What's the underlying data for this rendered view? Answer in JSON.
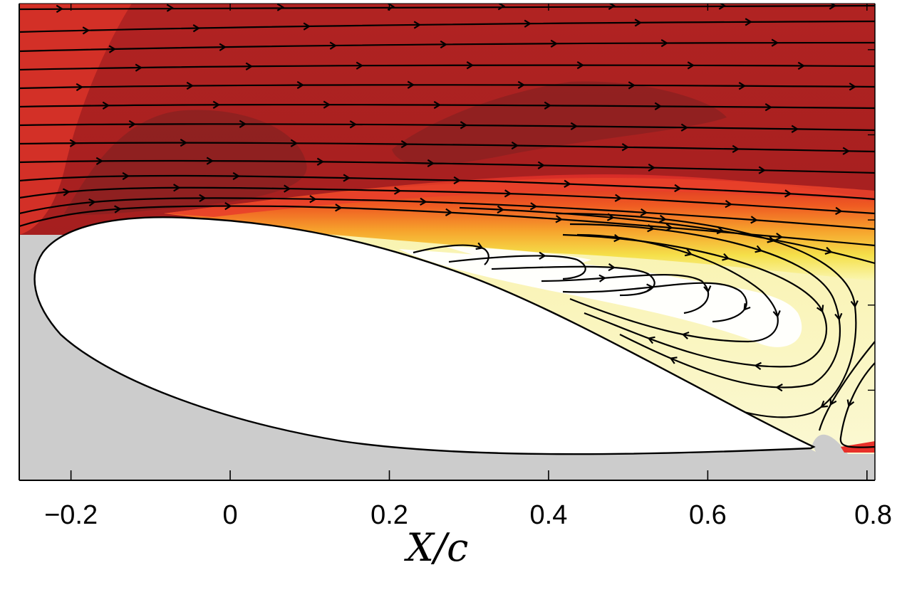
{
  "chart_data": {
    "type": "heatmap",
    "title": "",
    "xlabel": "X/c",
    "ylabel": "",
    "xlim": [
      -0.265,
      0.81
    ],
    "xticks": [
      -0.2,
      0,
      0.2,
      0.4,
      0.6,
      0.8
    ],
    "xtick_labels": [
      "−0.2",
      "0",
      "0.2",
      "0.4",
      "0.6",
      "0.8"
    ],
    "y_ticks_unlabeled": 5,
    "grid": false,
    "legend": "none",
    "colormap": {
      "name": "hot",
      "stops": [
        "#7a1e1e",
        "#a62222",
        "#d62a28",
        "#ef5a22",
        "#f6a22c",
        "#f5e04a",
        "#faf6b0",
        "#fffef0"
      ]
    },
    "masked_region_color": "#cccccc",
    "airfoil": {
      "leading_edge_x": -0.245,
      "trailing_edge_x": 0.73,
      "fill": "#ffffff",
      "outline": "#000000"
    },
    "features": {
      "freestream": "high-speed region above the airfoil shown in dark red",
      "shear_layer": "red to yellow transition from about x = 0.05 downstream",
      "separated_region": "low-speed pale yellow/white recirculation zone over the aft suction side from about x = 0.25 to 0.81",
      "vortex_center_x": 0.72
    },
    "streamline_count": 24
  }
}
